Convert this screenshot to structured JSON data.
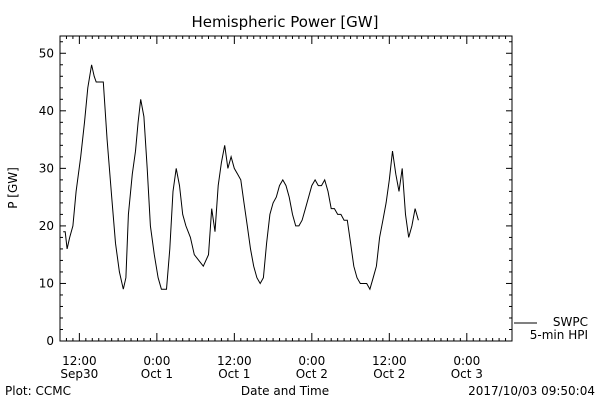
{
  "chart_data": {
    "type": "line",
    "title": "Hemispheric Power [GW]",
    "ylabel": "P [GW]",
    "xlabel": "Date and Time",
    "ylim": [
      0,
      53
    ],
    "xlim_hours": [
      -3,
      67
    ],
    "y_ticks": [
      0,
      10,
      20,
      30,
      40,
      50
    ],
    "x_ticks": [
      {
        "hours": 0,
        "time": "12:00",
        "date": "Sep30"
      },
      {
        "hours": 12,
        "time": "0:00",
        "date": "Oct 1"
      },
      {
        "hours": 24,
        "time": "12:00",
        "date": "Oct 1"
      },
      {
        "hours": 36,
        "time": "0:00",
        "date": "Oct 2"
      },
      {
        "hours": 48,
        "time": "12:00",
        "date": "Oct 2"
      },
      {
        "hours": 60,
        "time": "0:00",
        "date": "Oct 3"
      }
    ],
    "legend": {
      "source": "SWPC",
      "series": "5-min HPI",
      "placement": "bottom-right outside"
    },
    "series": [
      {
        "name": "5-min HPI",
        "points": [
          [
            -2.5,
            19
          ],
          [
            -2.2,
            19
          ],
          [
            -1.9,
            16
          ],
          [
            -1.5,
            18
          ],
          [
            -1.0,
            20
          ],
          [
            -0.5,
            26
          ],
          [
            0.2,
            32
          ],
          [
            0.8,
            38
          ],
          [
            1.3,
            44
          ],
          [
            1.9,
            48
          ],
          [
            2.3,
            46
          ],
          [
            2.6,
            45
          ],
          [
            3.2,
            45
          ],
          [
            3.7,
            45
          ],
          [
            4.3,
            35
          ],
          [
            5.0,
            25
          ],
          [
            5.6,
            17
          ],
          [
            6.2,
            12
          ],
          [
            6.8,
            9
          ],
          [
            7.2,
            11
          ],
          [
            7.6,
            22
          ],
          [
            8.2,
            29
          ],
          [
            8.7,
            33
          ],
          [
            9.1,
            38
          ],
          [
            9.5,
            42
          ],
          [
            10.0,
            39
          ],
          [
            10.5,
            30
          ],
          [
            11.0,
            20
          ],
          [
            11.6,
            15
          ],
          [
            12.2,
            11
          ],
          [
            12.7,
            9
          ],
          [
            13.5,
            9
          ],
          [
            14.0,
            16
          ],
          [
            14.5,
            26
          ],
          [
            15.0,
            30
          ],
          [
            15.5,
            27
          ],
          [
            16.0,
            22
          ],
          [
            16.5,
            20
          ],
          [
            17.2,
            18
          ],
          [
            17.8,
            15
          ],
          [
            18.5,
            14
          ],
          [
            19.2,
            13
          ],
          [
            20.0,
            15
          ],
          [
            20.5,
            23
          ],
          [
            21.0,
            19
          ],
          [
            21.5,
            27
          ],
          [
            22.0,
            31
          ],
          [
            22.5,
            34
          ],
          [
            23.0,
            30
          ],
          [
            23.5,
            32
          ],
          [
            24.0,
            30
          ],
          [
            24.5,
            29
          ],
          [
            25.0,
            28
          ],
          [
            25.5,
            24
          ],
          [
            26.0,
            20
          ],
          [
            26.5,
            16
          ],
          [
            27.0,
            13
          ],
          [
            27.5,
            11
          ],
          [
            28.0,
            10
          ],
          [
            28.5,
            11
          ],
          [
            29.0,
            17
          ],
          [
            29.5,
            22
          ],
          [
            30.0,
            24
          ],
          [
            30.5,
            25
          ],
          [
            31.0,
            27
          ],
          [
            31.5,
            28
          ],
          [
            32.0,
            27
          ],
          [
            32.5,
            25
          ],
          [
            33.0,
            22
          ],
          [
            33.5,
            20
          ],
          [
            34.0,
            20
          ],
          [
            34.5,
            21
          ],
          [
            35.0,
            23
          ],
          [
            35.5,
            25
          ],
          [
            36.0,
            27
          ],
          [
            36.5,
            28
          ],
          [
            37.0,
            27
          ],
          [
            37.5,
            27
          ],
          [
            38.0,
            28
          ],
          [
            38.5,
            26
          ],
          [
            39.0,
            23
          ],
          [
            39.5,
            23
          ],
          [
            40.0,
            22
          ],
          [
            40.5,
            22
          ],
          [
            41.0,
            21
          ],
          [
            41.5,
            21
          ],
          [
            42.0,
            17
          ],
          [
            42.5,
            13
          ],
          [
            43.0,
            11
          ],
          [
            43.5,
            10
          ],
          [
            44.0,
            10
          ],
          [
            44.5,
            10
          ],
          [
            45.0,
            9
          ],
          [
            45.5,
            11
          ],
          [
            46.0,
            13
          ],
          [
            46.5,
            18
          ],
          [
            47.0,
            21
          ],
          [
            47.5,
            24
          ],
          [
            48.0,
            28
          ],
          [
            48.5,
            33
          ],
          [
            49.0,
            29
          ],
          [
            49.5,
            26
          ],
          [
            50.0,
            30
          ],
          [
            50.5,
            22
          ],
          [
            51.0,
            18
          ],
          [
            51.5,
            20
          ],
          [
            52.0,
            23
          ],
          [
            52.5,
            21
          ]
        ]
      }
    ]
  },
  "footer": {
    "plot_source": "Plot: CCMC",
    "timestamp": "2017/10/03 09:50:04"
  }
}
